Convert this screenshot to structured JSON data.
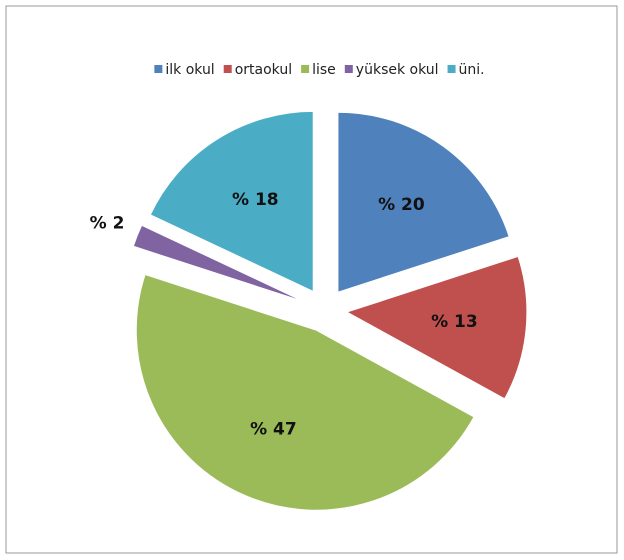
{
  "chart_data": {
    "type": "pie",
    "categories": [
      "ilk okul",
      "ortaokul",
      "lise",
      "yüksek okul",
      "üni."
    ],
    "values": [
      20,
      13,
      47,
      2,
      18
    ],
    "value_labels": [
      "% 20",
      "% 13",
      "% 47",
      "% 2",
      "% 18"
    ],
    "colors": [
      "#4f81bd",
      "#c0504d",
      "#9bbb59",
      "#8064a2",
      "#4bacc6"
    ],
    "legend": "top"
  }
}
